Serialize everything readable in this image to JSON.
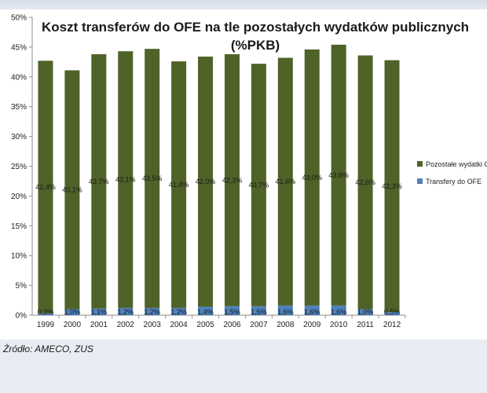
{
  "chart_data": {
    "type": "bar",
    "stacked": true,
    "title_line1": "Koszt transferów do OFE na tle pozostałych wydatków publicznych",
    "title_line2": "(%PKB)",
    "categories": [
      "1999",
      "2000",
      "2001",
      "2002",
      "2003",
      "2004",
      "2005",
      "2006",
      "2007",
      "2008",
      "2009",
      "2010",
      "2011",
      "2012"
    ],
    "series": [
      {
        "name": "Transfery do OFE",
        "color": "#4f81bd",
        "values": [
          0.3,
          1.0,
          1.1,
          1.2,
          1.2,
          1.2,
          1.4,
          1.5,
          1.5,
          1.6,
          1.6,
          1.6,
          1.0,
          0.5
        ],
        "labels": [
          "0,3%",
          "1,0%",
          "1,1%",
          "1,2%",
          "1,2%",
          "1,2%",
          "1,4%",
          "1,5%",
          "1,5%",
          "1,6%",
          "1,6%",
          "1,6%",
          "1,0%",
          "0,5%"
        ]
      },
      {
        "name": "Pozostałe wydatki G",
        "color": "#4f6228",
        "values": [
          42.4,
          40.1,
          42.7,
          43.1,
          43.5,
          41.4,
          42.0,
          42.3,
          40.7,
          41.6,
          43.0,
          43.8,
          42.6,
          42.3
        ],
        "labels": [
          "42,4%",
          "40,1%",
          "42,7%",
          "43,1%",
          "43,5%",
          "41,4%",
          "42,0%",
          "42,3%",
          "40,7%",
          "41,6%",
          "43,0%",
          "43,8%",
          "42,6%",
          "42,3%"
        ]
      }
    ],
    "yticks": [
      "0%",
      "5%",
      "10%",
      "15%",
      "20%",
      "25%",
      "30%",
      "35%",
      "40%",
      "45%",
      "50%"
    ],
    "ylim": [
      0,
      50
    ],
    "legend_position": "right",
    "legend_order": [
      "Pozostałe wydatki G",
      "Transfery do OFE"
    ],
    "grid": false
  },
  "source": "Źródło: AMECO, ZUS"
}
